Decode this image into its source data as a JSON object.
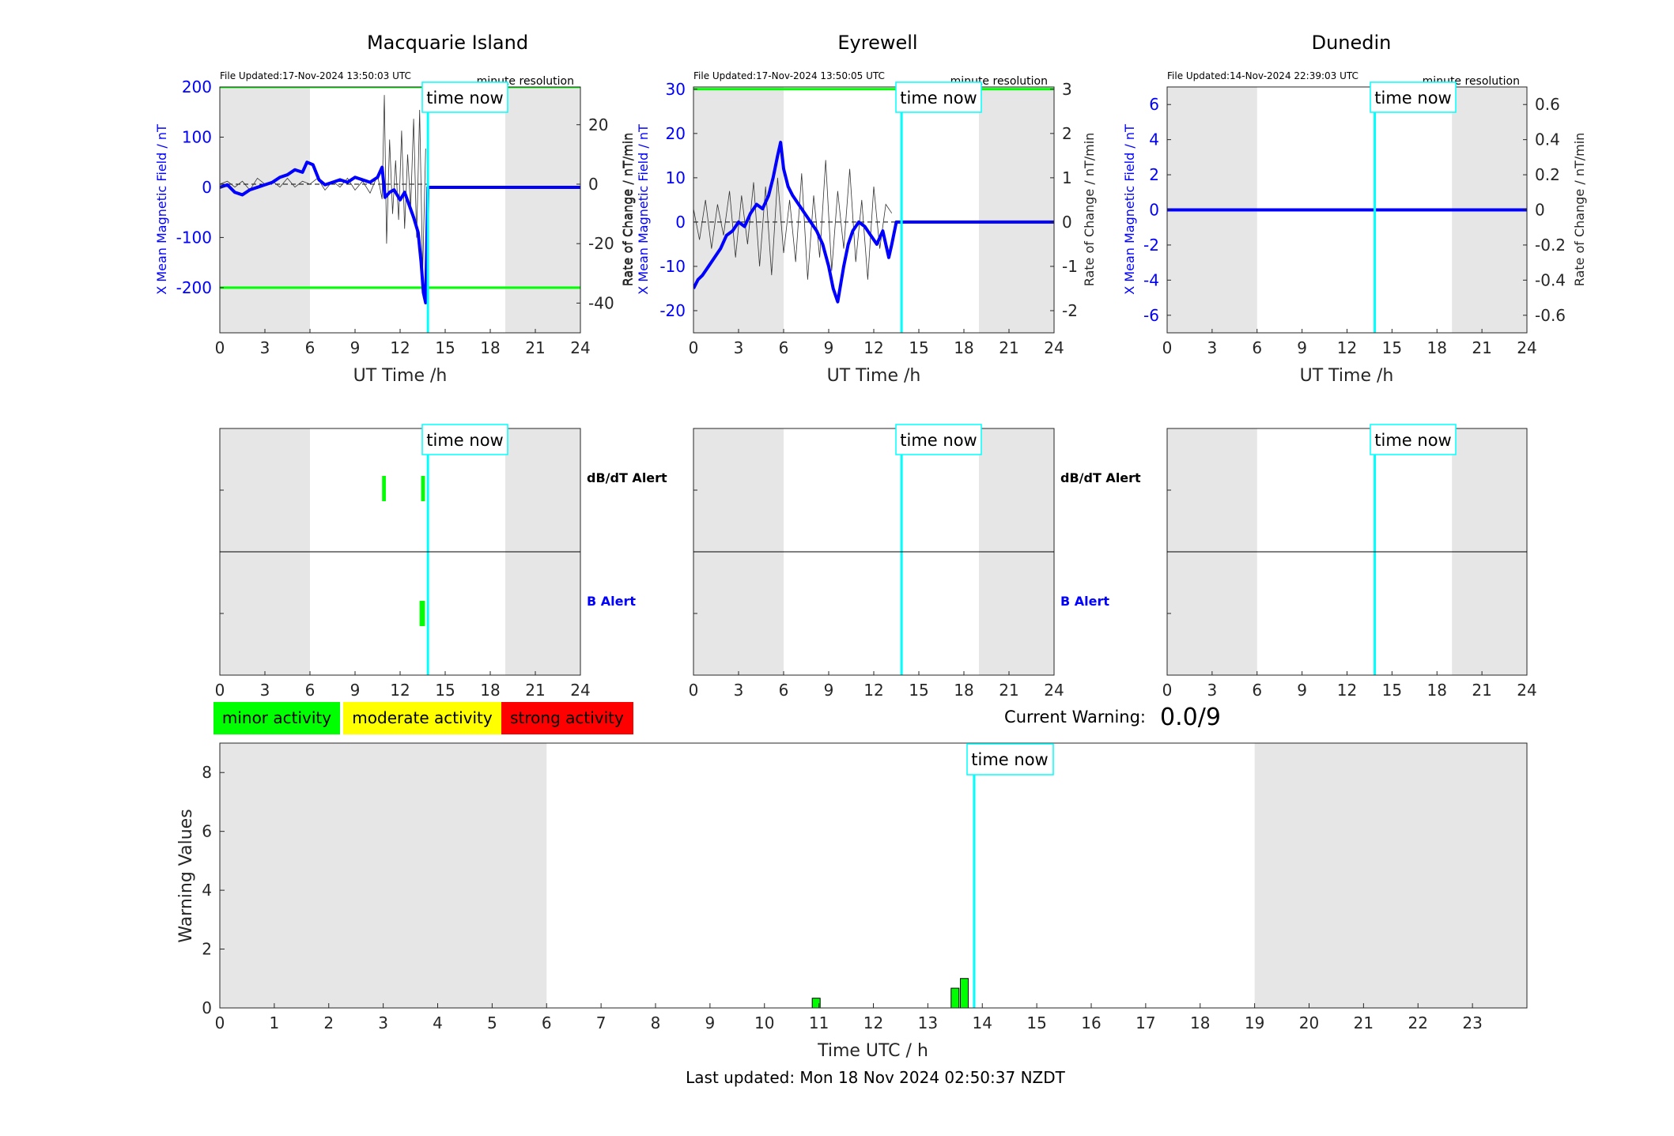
{
  "colors": {
    "axis": "#262626",
    "blue": "#0000ff",
    "cyan": "#00ffff",
    "green": "#00ff00",
    "night": "#e6e6e6",
    "rate": "#333333",
    "minor": "#00ff00",
    "moderate": "#ffff00",
    "strong": "#ff0000"
  },
  "common": {
    "x_label": "UT Time /h",
    "x_ticks": [
      "0",
      "3",
      "6",
      "9",
      "12",
      "15",
      "18",
      "21",
      "24"
    ],
    "time_now_label": "time now",
    "resolution_label": "minute resolution",
    "left_ylabel": "X Mean Magnetic Field / nT",
    "right_ylabel": "Rate of Change / nT/min",
    "dbdt_alert_label": "dB/dT Alert",
    "b_alert_label": "B Alert"
  },
  "legend": {
    "minor": "minor activity",
    "moderate": "moderate activity",
    "strong": "strong activity"
  },
  "current_warning": {
    "label": "Current Warning:",
    "value": "0.0/9"
  },
  "footer": {
    "last_updated": "Last updated: Mon 18 Nov 2024 02:50:37 NZDT"
  },
  "chart_data": [
    {
      "type": "line",
      "title": "Macquarie Island",
      "file_updated": "File Updated:17-Nov-2024 13:50:03 UTC",
      "xlim": [
        0,
        24
      ],
      "ylim_left": [
        -290,
        200
      ],
      "yticks_left": [
        200,
        100,
        0,
        -100,
        -200
      ],
      "ylim_right": [
        -50,
        32.7
      ],
      "yticks_right": [
        20,
        0,
        -20,
        -40
      ],
      "night_bands": [
        [
          0,
          6
        ],
        [
          19,
          24
        ]
      ],
      "time_now": 13.85,
      "threshold_lines": [
        200,
        -200
      ],
      "series": [
        {
          "x": [
            0,
            0.5,
            1,
            1.5,
            2,
            2.5,
            3,
            3.5,
            4,
            4.5,
            5,
            5.5,
            5.8,
            6.2,
            6.6,
            7,
            7.5,
            8,
            8.5,
            9,
            9.5,
            10,
            10.5,
            10.8,
            11,
            11.3,
            11.6,
            12,
            12.3,
            12.6,
            12.9,
            13.2,
            13.4,
            13.55,
            13.7,
            13.85,
            14,
            16,
            18,
            20,
            22,
            24
          ],
          "y": [
            0,
            5,
            -10,
            -15,
            -5,
            0,
            5,
            10,
            20,
            25,
            35,
            30,
            50,
            45,
            15,
            5,
            10,
            15,
            10,
            20,
            15,
            10,
            20,
            40,
            -20,
            -10,
            -5,
            -25,
            -10,
            -35,
            -60,
            -90,
            -150,
            -210,
            -230,
            0,
            0,
            0,
            0,
            0,
            0,
            0
          ]
        }
      ],
      "rate_series": [
        {
          "x": [
            0,
            0.5,
            1,
            1.5,
            2,
            2.5,
            3,
            3.5,
            4,
            4.5,
            5,
            5.5,
            6,
            6.5,
            7,
            7.5,
            8,
            8.5,
            9,
            9.5,
            10,
            10.5,
            10.8,
            10.95,
            11.1,
            11.3,
            11.5,
            11.7,
            11.9,
            12.1,
            12.3,
            12.5,
            12.7,
            12.9,
            13.1,
            13.3,
            13.5,
            13.7
          ],
          "y": [
            0,
            1,
            -1,
            1,
            -2,
            2,
            0,
            1,
            -1,
            2,
            -1,
            1,
            0,
            2,
            -2,
            1,
            -1,
            2,
            -2,
            1,
            -3,
            3,
            -5,
            30,
            -20,
            15,
            -10,
            8,
            -12,
            18,
            -15,
            10,
            -8,
            22,
            -18,
            25,
            -30,
            12
          ]
        }
      ],
      "dbdt_alerts": [
        [
          10.8,
          11.05
        ],
        [
          13.4,
          13.65
        ]
      ],
      "b_alerts": [
        [
          13.3,
          13.65
        ]
      ]
    },
    {
      "type": "line",
      "title": "Eyrewell",
      "file_updated": "File Updated:17-Nov-2024 13:50:05 UTC",
      "xlim": [
        0,
        24
      ],
      "ylim_left": [
        -25,
        30.5
      ],
      "yticks_left": [
        30,
        20,
        10,
        0,
        -10,
        -20
      ],
      "ylim_right": [
        -2.5,
        3.05
      ],
      "yticks_right": [
        3,
        2,
        1,
        0,
        -1,
        -2
      ],
      "night_bands": [
        [
          0,
          6
        ],
        [
          19,
          24
        ]
      ],
      "time_now": 13.85,
      "threshold_lines": [
        30
      ],
      "series": [
        {
          "x": [
            0,
            0.3,
            0.6,
            1,
            1.4,
            1.8,
            2.2,
            2.6,
            3,
            3.4,
            3.8,
            4.2,
            4.6,
            5,
            5.3,
            5.6,
            5.8,
            6,
            6.3,
            6.6,
            7,
            7.4,
            7.8,
            8.2,
            8.6,
            9,
            9.3,
            9.6,
            10,
            10.3,
            10.6,
            11,
            11.4,
            11.8,
            12.2,
            12.6,
            13,
            13.2,
            13.5,
            14,
            16,
            18,
            20,
            22,
            24
          ],
          "y": [
            -15,
            -13,
            -12,
            -10,
            -8,
            -6,
            -3,
            -2,
            0,
            -1,
            2,
            4,
            3,
            6,
            10,
            15,
            18,
            12,
            8,
            6,
            4,
            2,
            0,
            -2,
            -5,
            -10,
            -15,
            -18,
            -10,
            -5,
            -2,
            0,
            -1,
            -3,
            -5,
            -2,
            -8,
            -5,
            0,
            0,
            0,
            0,
            0,
            0,
            0
          ]
        }
      ],
      "rate_series": [
        {
          "x": [
            0,
            0.4,
            0.8,
            1.2,
            1.6,
            2,
            2.4,
            2.8,
            3.2,
            3.6,
            4,
            4.4,
            4.8,
            5.2,
            5.6,
            6,
            6.4,
            6.8,
            7.2,
            7.6,
            8,
            8.4,
            8.8,
            9.2,
            9.6,
            10,
            10.4,
            10.8,
            11.2,
            11.6,
            12,
            12.4,
            12.8,
            13.2
          ],
          "y": [
            0.3,
            -0.4,
            0.5,
            -0.6,
            0.4,
            -0.3,
            0.7,
            -0.8,
            0.6,
            -0.5,
            0.9,
            -1.0,
            0.8,
            -1.2,
            1.0,
            -0.7,
            0.5,
            -0.9,
            1.1,
            -1.3,
            0.6,
            -0.8,
            1.4,
            -1.1,
            0.7,
            -0.6,
            1.2,
            -0.9,
            0.5,
            -1.3,
            0.8,
            -0.6,
            0.4,
            0.2
          ]
        }
      ],
      "dbdt_alerts": [],
      "b_alerts": []
    },
    {
      "type": "line",
      "title": "Dunedin",
      "file_updated": "File Updated:14-Nov-2024 22:39:03 UTC",
      "xlim": [
        0,
        24
      ],
      "ylim_left": [
        -7,
        7
      ],
      "yticks_left": [
        6,
        4,
        2,
        0,
        -2,
        -4,
        -6
      ],
      "ylim_right": [
        -0.7,
        0.7
      ],
      "yticks_right": [
        "0.6",
        "0.4",
        "0.2",
        "0",
        "-0.2",
        "-0.4",
        "-0.6"
      ],
      "night_bands": [
        [
          0,
          6
        ],
        [
          19,
          24
        ]
      ],
      "time_now": 13.85,
      "threshold_lines": [],
      "series": [
        {
          "x": [
            0,
            24
          ],
          "y": [
            0,
            0
          ]
        }
      ],
      "rate_series": [],
      "dbdt_alerts": [],
      "b_alerts": []
    },
    {
      "type": "bar",
      "xlabel": "Time UTC / h",
      "ylabel": "Warning Values",
      "xlim": [
        0,
        24
      ],
      "ylim": [
        0,
        9
      ],
      "x_ticks": [
        "0",
        "1",
        "2",
        "3",
        "4",
        "5",
        "6",
        "7",
        "8",
        "9",
        "10",
        "11",
        "12",
        "13",
        "14",
        "15",
        "16",
        "17",
        "18",
        "19",
        "20",
        "21",
        "22",
        "23"
      ],
      "y_ticks": [
        "0",
        "2",
        "4",
        "6",
        "8"
      ],
      "night_bands": [
        [
          0,
          6
        ],
        [
          19,
          24
        ]
      ],
      "time_now": 13.85,
      "bars": [
        {
          "x": 10.95,
          "value": 0.33
        },
        {
          "x": 13.5,
          "value": 0.67
        },
        {
          "x": 13.67,
          "value": 1.0
        }
      ]
    }
  ]
}
